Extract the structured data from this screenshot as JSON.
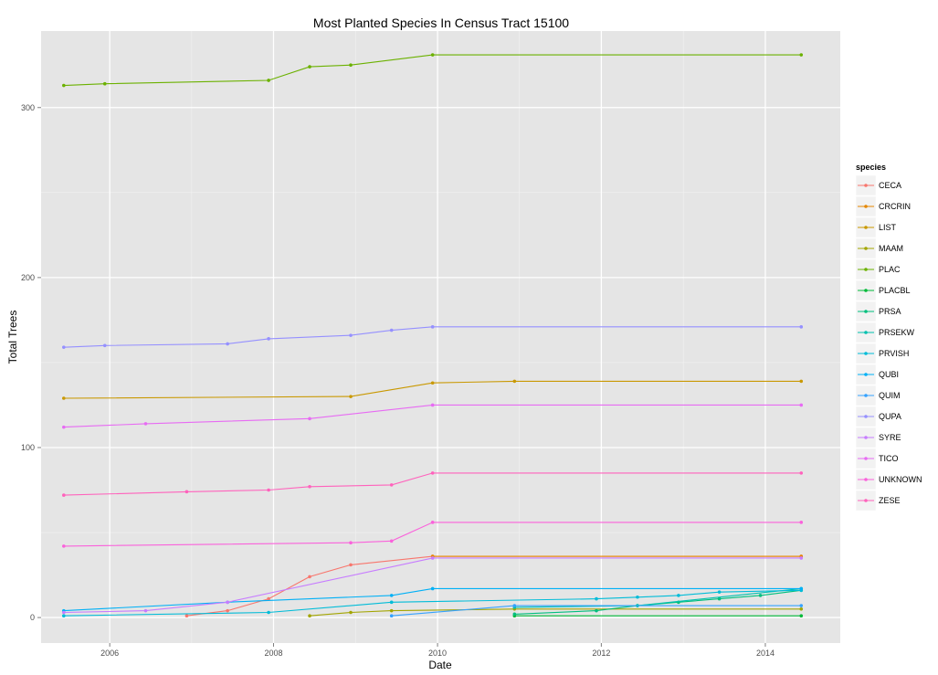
{
  "chart_data": {
    "type": "line",
    "title": "Most Planted Species In Census Tract 15100",
    "xlabel": "Date",
    "ylabel": "Total Trees",
    "x_ticks": [
      "2006",
      "2008",
      "2010",
      "2012",
      "2014"
    ],
    "y_ticks": [
      "0",
      "100",
      "200",
      "300"
    ],
    "xlim": [
      "2005-03-01",
      "2014-12-01"
    ],
    "ylim": [
      -15,
      345
    ],
    "grid": true,
    "legend_title": "species",
    "legend_position": "right",
    "series": [
      {
        "name": "CECA",
        "color": "#F8766D",
        "points": [
          [
            "2006-12-10",
            1
          ],
          [
            "2007-06-10",
            4
          ],
          [
            "2007-12-10",
            11
          ],
          [
            "2008-06-10",
            24
          ],
          [
            "2008-12-10",
            31
          ],
          [
            "2009-12-10",
            36
          ],
          [
            "2014-06-10",
            36
          ]
        ]
      },
      {
        "name": "CRCRIN",
        "color": "#E58700",
        "points": [
          [
            "2009-12-10",
            36
          ],
          [
            "2014-06-10",
            36
          ]
        ]
      },
      {
        "name": "LIST",
        "color": "#C99800",
        "points": [
          [
            "2005-06-10",
            129
          ],
          [
            "2008-12-10",
            130
          ],
          [
            "2009-12-10",
            138
          ],
          [
            "2010-12-10",
            139
          ],
          [
            "2014-06-10",
            139
          ]
        ]
      },
      {
        "name": "MAAM",
        "color": "#A3A500",
        "points": [
          [
            "2008-06-10",
            1
          ],
          [
            "2008-12-10",
            3
          ],
          [
            "2009-06-10",
            4
          ],
          [
            "2010-12-10",
            5
          ],
          [
            "2014-06-10",
            5
          ]
        ]
      },
      {
        "name": "PLAC",
        "color": "#6BB100",
        "points": [
          [
            "2005-06-10",
            313
          ],
          [
            "2005-12-10",
            314
          ],
          [
            "2007-12-10",
            316
          ],
          [
            "2008-06-10",
            324
          ],
          [
            "2008-12-10",
            325
          ],
          [
            "2009-12-10",
            331
          ],
          [
            "2014-06-10",
            331
          ]
        ]
      },
      {
        "name": "PLACBL",
        "color": "#00BA38",
        "points": [
          [
            "2010-12-10",
            1
          ],
          [
            "2014-06-10",
            1
          ]
        ]
      },
      {
        "name": "PRSA",
        "color": "#00BF7D",
        "points": [
          [
            "2010-12-10",
            2
          ],
          [
            "2011-12-10",
            4
          ],
          [
            "2012-06-10",
            7
          ],
          [
            "2012-12-10",
            9
          ],
          [
            "2013-06-10",
            11
          ],
          [
            "2013-12-10",
            13
          ],
          [
            "2014-06-10",
            16
          ]
        ]
      },
      {
        "name": "PRSEKW",
        "color": "#00C0AF",
        "points": [
          [
            "2010-12-10",
            6
          ],
          [
            "2012-06-10",
            7
          ],
          [
            "2014-06-10",
            17
          ]
        ]
      },
      {
        "name": "PRVISH",
        "color": "#00BCD8",
        "points": [
          [
            "2005-06-10",
            1
          ],
          [
            "2007-12-10",
            3
          ],
          [
            "2009-06-10",
            9
          ],
          [
            "2011-12-10",
            11
          ],
          [
            "2012-06-10",
            12
          ],
          [
            "2012-12-10",
            13
          ],
          [
            "2013-06-10",
            15
          ],
          [
            "2014-06-10",
            16
          ]
        ]
      },
      {
        "name": "QUBI",
        "color": "#00B0F6",
        "points": [
          [
            "2005-06-10",
            4
          ],
          [
            "2007-06-10",
            9
          ],
          [
            "2009-06-10",
            13
          ],
          [
            "2009-12-10",
            17
          ],
          [
            "2014-06-10",
            17
          ]
        ]
      },
      {
        "name": "QUIM",
        "color": "#35A2FF",
        "points": [
          [
            "2009-06-10",
            1
          ],
          [
            "2010-12-10",
            7
          ],
          [
            "2014-06-10",
            7
          ]
        ]
      },
      {
        "name": "QUPA",
        "color": "#9590FF",
        "points": [
          [
            "2005-06-10",
            159
          ],
          [
            "2005-12-10",
            160
          ],
          [
            "2007-06-10",
            161
          ],
          [
            "2007-12-10",
            164
          ],
          [
            "2008-12-10",
            166
          ],
          [
            "2009-06-10",
            169
          ],
          [
            "2009-12-10",
            171
          ],
          [
            "2014-06-10",
            171
          ]
        ]
      },
      {
        "name": "SYRE",
        "color": "#C77CFF",
        "points": [
          [
            "2005-06-10",
            3
          ],
          [
            "2006-06-10",
            4
          ],
          [
            "2007-06-10",
            9
          ],
          [
            "2009-12-10",
            35
          ],
          [
            "2014-06-10",
            35
          ]
        ]
      },
      {
        "name": "TICO",
        "color": "#E76BF3",
        "points": [
          [
            "2005-06-10",
            112
          ],
          [
            "2006-06-10",
            114
          ],
          [
            "2008-06-10",
            117
          ],
          [
            "2009-12-10",
            125
          ],
          [
            "2014-06-10",
            125
          ]
        ]
      },
      {
        "name": "UNKNOWN",
        "color": "#FA62DB",
        "points": [
          [
            "2005-06-10",
            42
          ],
          [
            "2008-12-10",
            44
          ],
          [
            "2009-06-10",
            45
          ],
          [
            "2009-12-10",
            56
          ],
          [
            "2014-06-10",
            56
          ]
        ]
      },
      {
        "name": "ZESE",
        "color": "#FF62BC",
        "points": [
          [
            "2005-06-10",
            72
          ],
          [
            "2006-12-10",
            74
          ],
          [
            "2007-12-10",
            75
          ],
          [
            "2008-06-10",
            77
          ],
          [
            "2009-06-10",
            78
          ],
          [
            "2009-12-10",
            85
          ],
          [
            "2014-06-10",
            85
          ]
        ]
      }
    ]
  }
}
